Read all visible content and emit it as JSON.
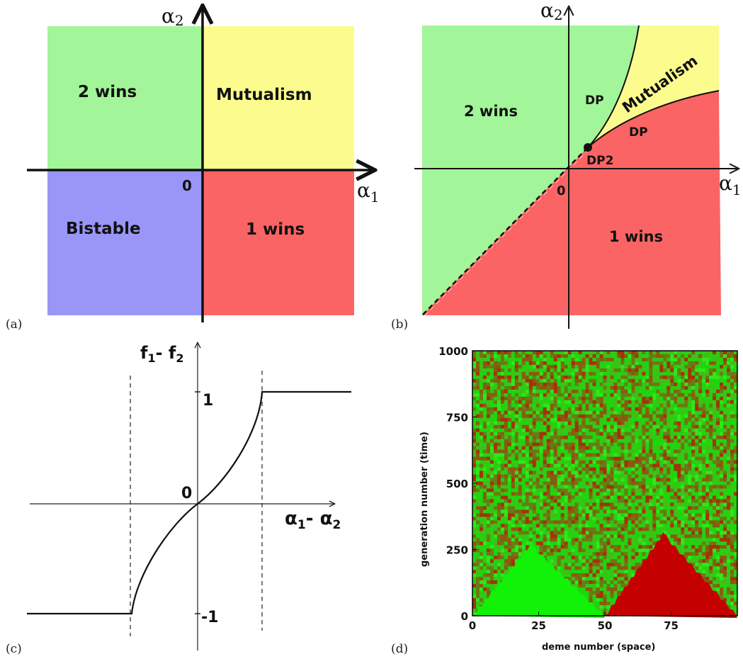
{
  "panels": {
    "a": {
      "tag": "(a)",
      "region_2wins": "2 wins",
      "region_mutualism": "Mutualism",
      "region_bistable": "Bistable",
      "region_1wins": "1 wins",
      "origin": "0",
      "x_axis": {
        "symbol": "α",
        "sub": "1"
      },
      "y_axis": {
        "symbol": "α",
        "sub": "2"
      },
      "colors": {
        "green": "#a2f598",
        "yellow": "#fcfc8e",
        "blue": "#9a96f7",
        "red": "#fb6464"
      }
    },
    "b": {
      "tag": "(b)",
      "region_2wins": "2 wins",
      "region_mutualism": "Mutualism",
      "region_1wins": "1 wins",
      "dp_upper": "DP",
      "dp_lower": "DP",
      "dp2": "DP2",
      "origin": "0",
      "x_axis": {
        "symbol": "α",
        "sub": "1"
      },
      "y_axis": {
        "symbol": "α",
        "sub": "2"
      }
    },
    "c": {
      "tag": "(c)",
      "y_label": {
        "f": "f",
        "sub1": "1",
        "dash": "- ",
        "sub2": "2"
      },
      "x_label": {
        "a": "α",
        "sub1": "1",
        "dash": "- ",
        "sub2": "2"
      },
      "tick_top": "1",
      "tick_zero": "0",
      "tick_bottom": "-1"
    },
    "d": {
      "tag": "(d)",
      "ylabel": "generation number (time)",
      "xlabel": "deme number (space)",
      "colors": {
        "green": "#22ee11",
        "red": "#c00000",
        "mix": "#5a6a1a"
      }
    }
  },
  "chart_data": {
    "type": "heatmap",
    "xlabel": "deme number (space)",
    "ylabel": "generation number (time)",
    "x_ticks": [
      "0",
      "25",
      "50",
      "75"
    ],
    "y_ticks": [
      "0",
      "250",
      "500",
      "750",
      "1000"
    ],
    "xlim": [
      0,
      100
    ],
    "ylim": [
      0,
      1000
    ],
    "initial_domains": [
      {
        "species": "green",
        "x_start": 0,
        "x_end": 50,
        "peak_x": 22,
        "peak_y": 270
      },
      {
        "species": "red",
        "x_start": 50,
        "x_end": 100,
        "peak_x": 72,
        "peak_y": 310
      }
    ]
  }
}
